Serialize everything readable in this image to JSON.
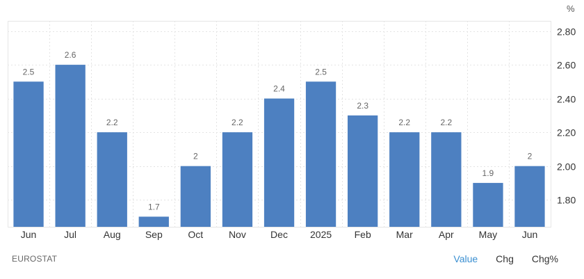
{
  "chart_data": {
    "type": "bar",
    "categories": [
      "Jun",
      "Jul",
      "Aug",
      "Sep",
      "Oct",
      "Nov",
      "Dec",
      "2025",
      "Feb",
      "Mar",
      "Apr",
      "May",
      "Jun"
    ],
    "values": [
      2.5,
      2.6,
      2.2,
      1.7,
      2,
      2.2,
      2.4,
      2.5,
      2.3,
      2.2,
      2.2,
      1.9,
      2
    ],
    "data_labels": [
      "2.5",
      "2.6",
      "2.2",
      "1.7",
      "2",
      "2.2",
      "2.4",
      "2.5",
      "2.3",
      "2.2",
      "2.2",
      "1.9",
      "2"
    ],
    "unit": "%",
    "y_ticks": [
      1.8,
      2.0,
      2.2,
      2.4,
      2.6,
      2.8
    ],
    "y_tick_labels": [
      "1.80",
      "2.00",
      "2.20",
      "2.40",
      "2.60",
      "2.80"
    ],
    "ylim": [
      1.64,
      2.86
    ],
    "y_axis_side": "right",
    "grid": true,
    "bar_color": "#4d80c1"
  },
  "footer": {
    "source": "EUROSTAT",
    "tabs": [
      {
        "label": "Value",
        "active": true
      },
      {
        "label": "Chg",
        "active": false
      },
      {
        "label": "Chg%",
        "active": false
      }
    ]
  }
}
